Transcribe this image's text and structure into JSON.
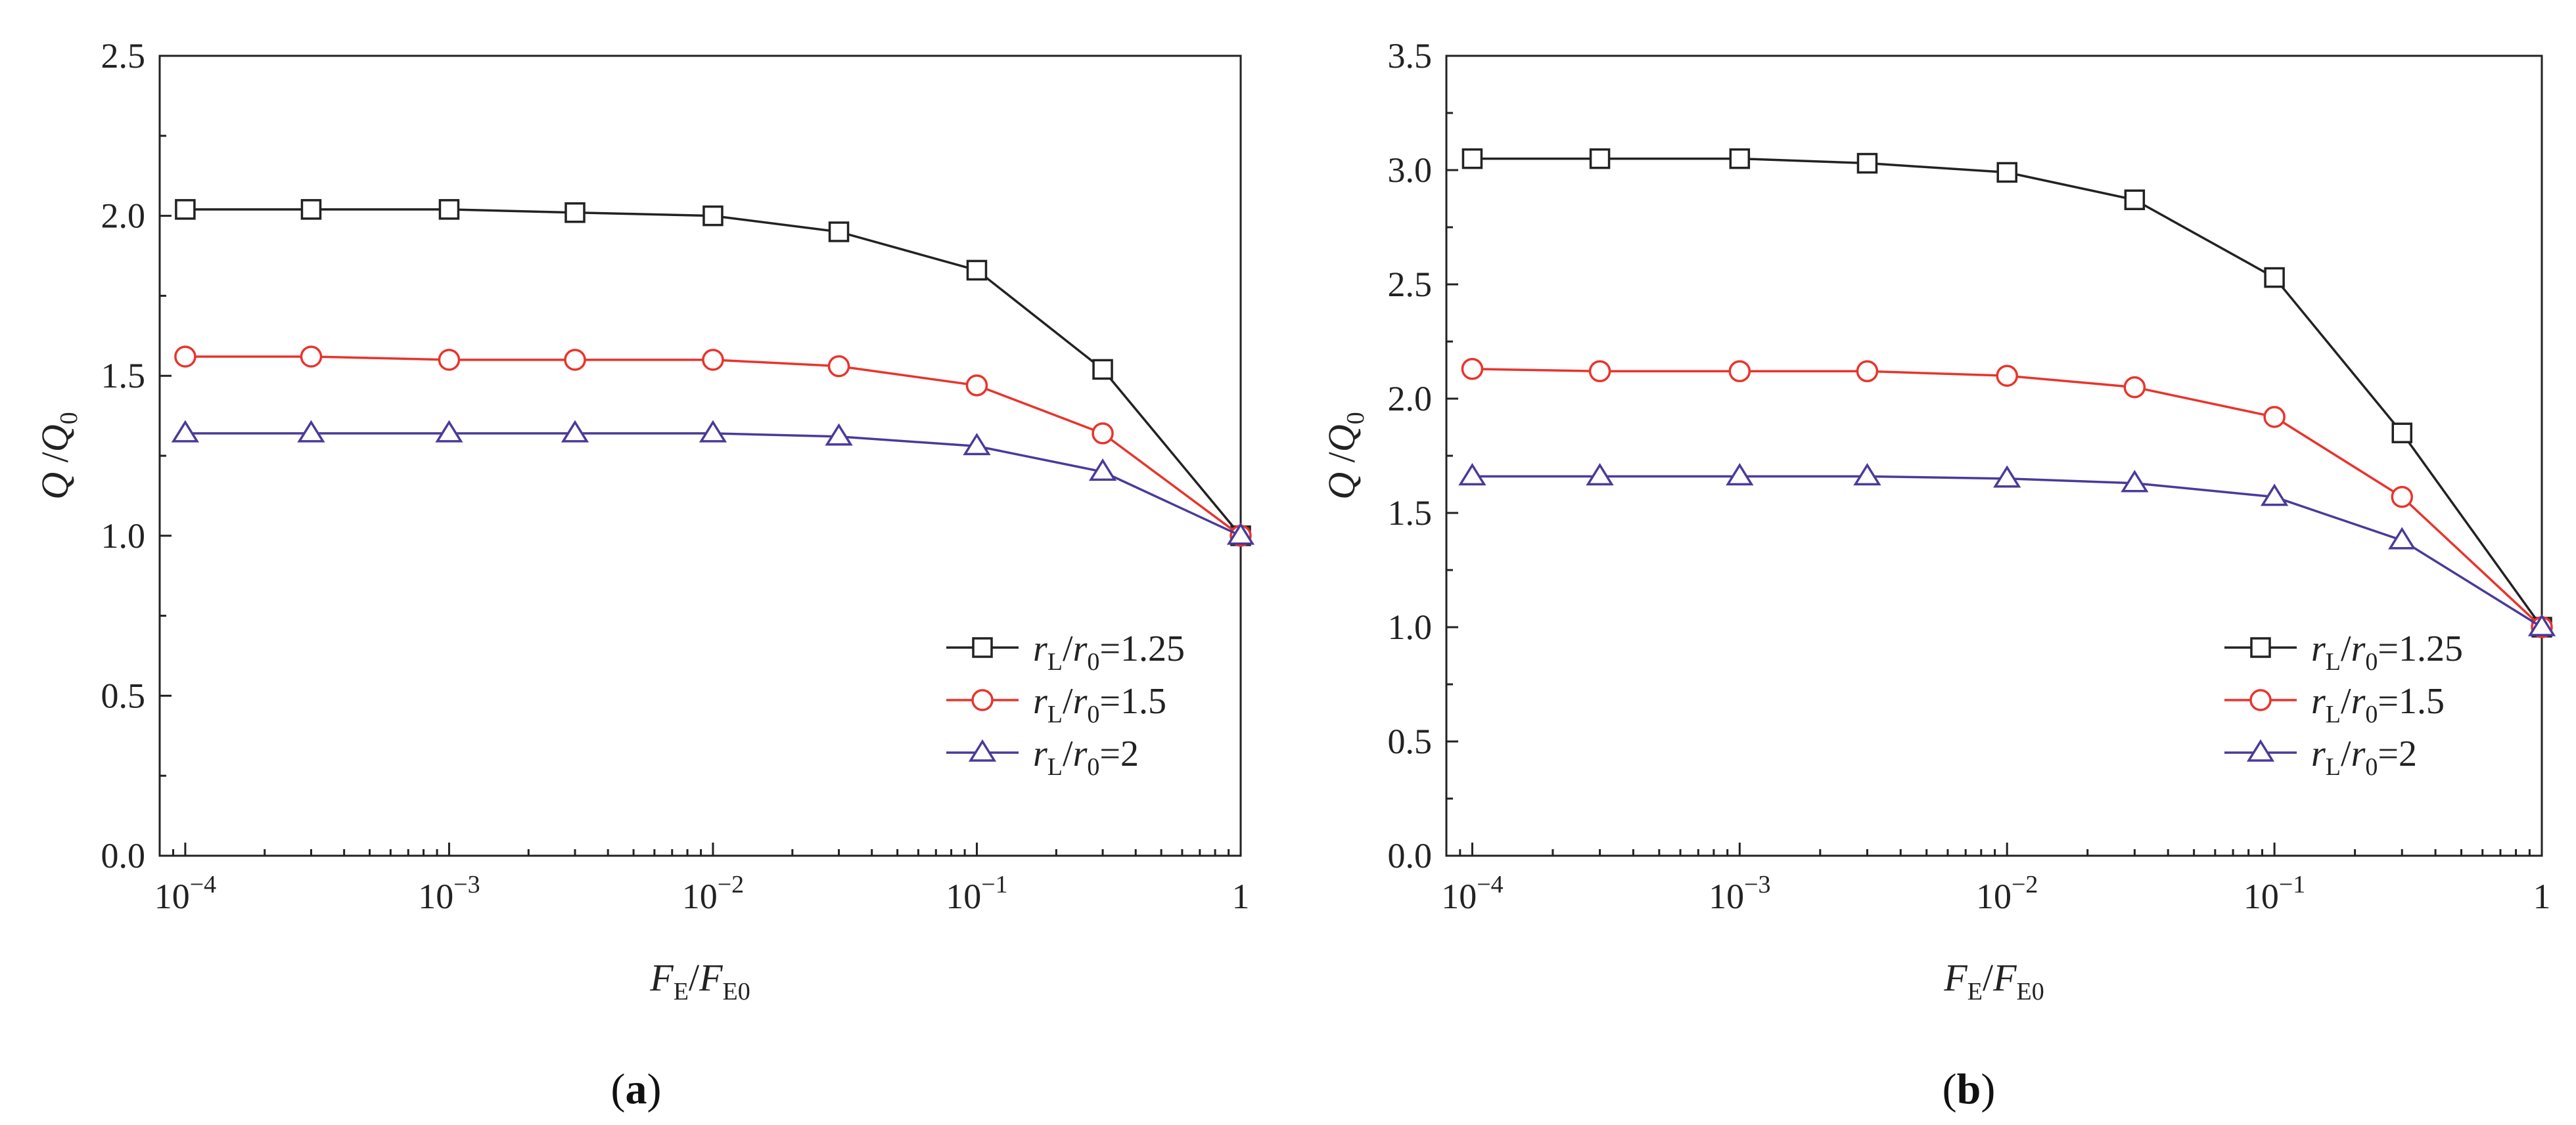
{
  "chart_data": [
    {
      "panel_label": "a",
      "type": "line",
      "x_scale": "log",
      "x": [
        0.0001,
        0.0003,
        0.001,
        0.003,
        0.01,
        0.03,
        0.1,
        0.3,
        1
      ],
      "xlim": [
        8e-05,
        1
      ],
      "ylim": [
        0,
        2.5
      ],
      "y_ticks": [
        "0.0",
        "0.5",
        "1.0",
        "1.5",
        "2.0",
        "2.5"
      ],
      "x_ticks": [
        {
          "base": "10",
          "exp": "−4",
          "v": 0.0001
        },
        {
          "base": "10",
          "exp": "−3",
          "v": 0.001
        },
        {
          "base": "10",
          "exp": "−2",
          "v": 0.01
        },
        {
          "base": "10",
          "exp": "−1",
          "v": 0.1
        },
        {
          "base": "1",
          "exp": "",
          "v": 1
        }
      ],
      "ylabel": {
        "main": "Q",
        "slash": "/",
        "main2": "Q",
        "sub2": "0"
      },
      "xlabel": {
        "main": "F",
        "sub": "E",
        "slash": "/",
        "main2": "F",
        "sub2": "E0"
      },
      "series": [
        {
          "name": {
            "r": "r",
            "rs": "L",
            "sl": "/",
            "r2": "r",
            "r2s": "0",
            "eq": "=1.25"
          },
          "marker": "square",
          "color": "#222222",
          "values": [
            2.02,
            2.02,
            2.02,
            2.01,
            2.0,
            1.95,
            1.83,
            1.52,
            1.0
          ]
        },
        {
          "name": {
            "r": "r",
            "rs": "L",
            "sl": "/",
            "r2": "r",
            "r2s": "0",
            "eq": "=1.5"
          },
          "marker": "circle",
          "color": "#e8342c",
          "values": [
            1.56,
            1.56,
            1.55,
            1.55,
            1.55,
            1.53,
            1.47,
            1.32,
            1.0
          ]
        },
        {
          "name": {
            "r": "r",
            "rs": "L",
            "sl": "/",
            "r2": "r",
            "r2s": "0",
            "eq": "=2"
          },
          "marker": "triangle",
          "color": "#4a3a9a",
          "values": [
            1.32,
            1.32,
            1.32,
            1.32,
            1.32,
            1.31,
            1.28,
            1.2,
            1.0
          ]
        }
      ]
    },
    {
      "panel_label": "b",
      "type": "line",
      "x_scale": "log",
      "x": [
        0.0001,
        0.0003,
        0.001,
        0.003,
        0.01,
        0.03,
        0.1,
        0.3,
        1
      ],
      "xlim": [
        8e-05,
        1
      ],
      "ylim": [
        0,
        3.5
      ],
      "y_ticks": [
        "0.0",
        "0.5",
        "1.0",
        "1.5",
        "2.0",
        "2.5",
        "3.0",
        "3.5"
      ],
      "x_ticks": [
        {
          "base": "10",
          "exp": "−4",
          "v": 0.0001
        },
        {
          "base": "10",
          "exp": "−3",
          "v": 0.001
        },
        {
          "base": "10",
          "exp": "−2",
          "v": 0.01
        },
        {
          "base": "10",
          "exp": "−1",
          "v": 0.1
        },
        {
          "base": "1",
          "exp": "",
          "v": 1
        }
      ],
      "ylabel": {
        "main": "Q",
        "slash": "/",
        "main2": "Q",
        "sub2": "0"
      },
      "xlabel": {
        "main": "F",
        "sub": "E",
        "slash": "/",
        "main2": "F",
        "sub2": "E0"
      },
      "series": [
        {
          "name": {
            "r": "r",
            "rs": "L",
            "sl": "/",
            "r2": "r",
            "r2s": "0",
            "eq": "=1.25"
          },
          "marker": "square",
          "color": "#222222",
          "values": [
            3.05,
            3.05,
            3.05,
            3.03,
            2.99,
            2.87,
            2.53,
            1.85,
            1.0
          ]
        },
        {
          "name": {
            "r": "r",
            "rs": "L",
            "sl": "/",
            "r2": "r",
            "r2s": "0",
            "eq": "=1.5"
          },
          "marker": "circle",
          "color": "#e8342c",
          "values": [
            2.13,
            2.12,
            2.12,
            2.12,
            2.1,
            2.05,
            1.92,
            1.57,
            1.0
          ]
        },
        {
          "name": {
            "r": "r",
            "rs": "L",
            "sl": "/",
            "r2": "r",
            "r2s": "0",
            "eq": "=2"
          },
          "marker": "triangle",
          "color": "#4a3a9a",
          "values": [
            1.66,
            1.66,
            1.66,
            1.66,
            1.65,
            1.63,
            1.57,
            1.38,
            1.0
          ]
        }
      ]
    }
  ]
}
